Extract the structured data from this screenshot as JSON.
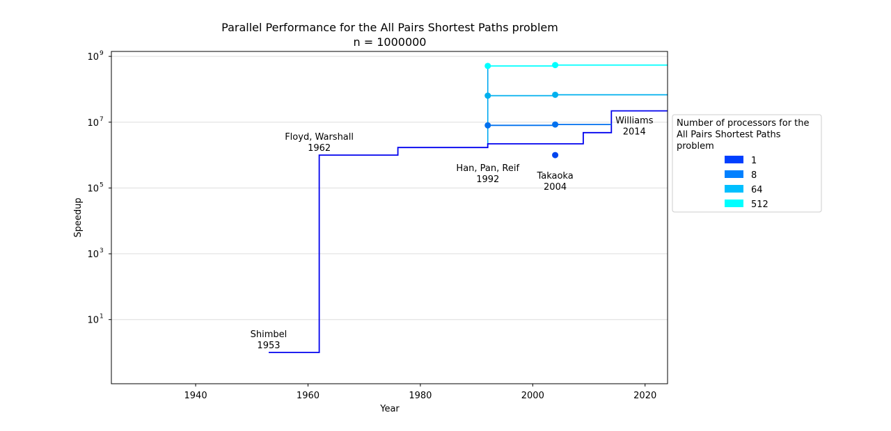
{
  "chart_data": {
    "type": "line",
    "title": "Parallel Performance for the All Pairs Shortest Paths problem",
    "subtitle": "n = 1000000",
    "xlabel": "Year",
    "ylabel": "Speedup",
    "xlim": [
      1925,
      2024
    ],
    "ylim_log10": [
      -0.95,
      9.15
    ],
    "x_ticks": [
      1940,
      1960,
      1980,
      2000,
      2020
    ],
    "y_ticks": [
      {
        "exp": 1,
        "label": "10",
        "sup": "1"
      },
      {
        "exp": 3,
        "label": "10",
        "sup": "3"
      },
      {
        "exp": 5,
        "label": "10",
        "sup": "5"
      },
      {
        "exp": 7,
        "label": "10",
        "sup": "7"
      },
      {
        "exp": 9,
        "label": "10",
        "sup": "9"
      }
    ],
    "grid": "horizontal",
    "legend": {
      "placement": "right",
      "title_lines": [
        "Number of processors for the",
        "All Pairs Shortest Paths",
        "problem"
      ],
      "entries": [
        {
          "label": "1",
          "color": "#0040ff"
        },
        {
          "label": "8",
          "color": "#0080ff"
        },
        {
          "label": "64",
          "color": "#00bfff"
        },
        {
          "label": "512",
          "color": "#00ffff"
        }
      ]
    },
    "series": [
      {
        "name": "1",
        "color": "#0000ee",
        "step_points": [
          [
            1953,
            1
          ],
          [
            1962,
            1
          ],
          [
            1962,
            1000000
          ],
          [
            1976,
            1000000
          ],
          [
            1976,
            1700000
          ],
          [
            1992,
            1700000
          ],
          [
            1992,
            2200000
          ],
          [
            2009,
            2200000
          ],
          [
            2009,
            4800000
          ],
          [
            2014,
            4800000
          ],
          [
            2014,
            22000000
          ],
          [
            2024,
            22000000
          ]
        ]
      },
      {
        "name": "8",
        "color": "#0070ee",
        "step_points": [
          [
            1992,
            8000000
          ],
          [
            2004,
            8000000
          ],
          [
            2004,
            8500000
          ],
          [
            2014,
            8500000
          ]
        ],
        "markers": [
          [
            1992,
            8000000
          ],
          [
            2004,
            8500000
          ]
        ]
      },
      {
        "name": "64",
        "color": "#00b0ee",
        "step_points": [
          [
            1992,
            64000000
          ],
          [
            2004,
            64000000
          ],
          [
            2004,
            68000000
          ],
          [
            2024,
            68000000
          ]
        ],
        "markers": [
          [
            1992,
            64000000
          ],
          [
            2004,
            68000000
          ]
        ]
      },
      {
        "name": "512",
        "color": "#00ffff",
        "step_points": [
          [
            1992,
            512000000
          ],
          [
            2004,
            512000000
          ],
          [
            2004,
            545000000
          ],
          [
            2024,
            545000000
          ]
        ],
        "markers": [
          [
            1992,
            512000000
          ],
          [
            2004,
            545000000
          ]
        ]
      }
    ],
    "extra_markers": [
      {
        "x": 2004,
        "y": 1000000,
        "color": "#0044ee"
      }
    ],
    "vertical_connectors": [
      {
        "x": 1992,
        "from": 1700000,
        "to": 512000000,
        "color": "#00a8f0"
      }
    ],
    "annotations": [
      {
        "lines": [
          "Shimbel",
          "1953"
        ],
        "x": 1953,
        "y": 1,
        "anchor": "above"
      },
      {
        "lines": [
          "Floyd, Warshall",
          "1962"
        ],
        "x": 1962,
        "y": 1000000,
        "anchor": "above"
      },
      {
        "lines": [
          "Han, Pan, Reif",
          "1992"
        ],
        "x": 1992,
        "y": 1700000,
        "anchor": "below"
      },
      {
        "lines": [
          "Takaoka",
          "2004"
        ],
        "x": 2004,
        "y": 1000000,
        "anchor": "below"
      },
      {
        "lines": [
          "Williams",
          "2014"
        ],
        "x": 2014,
        "y": 22000000,
        "anchor": "below-right"
      }
    ]
  }
}
